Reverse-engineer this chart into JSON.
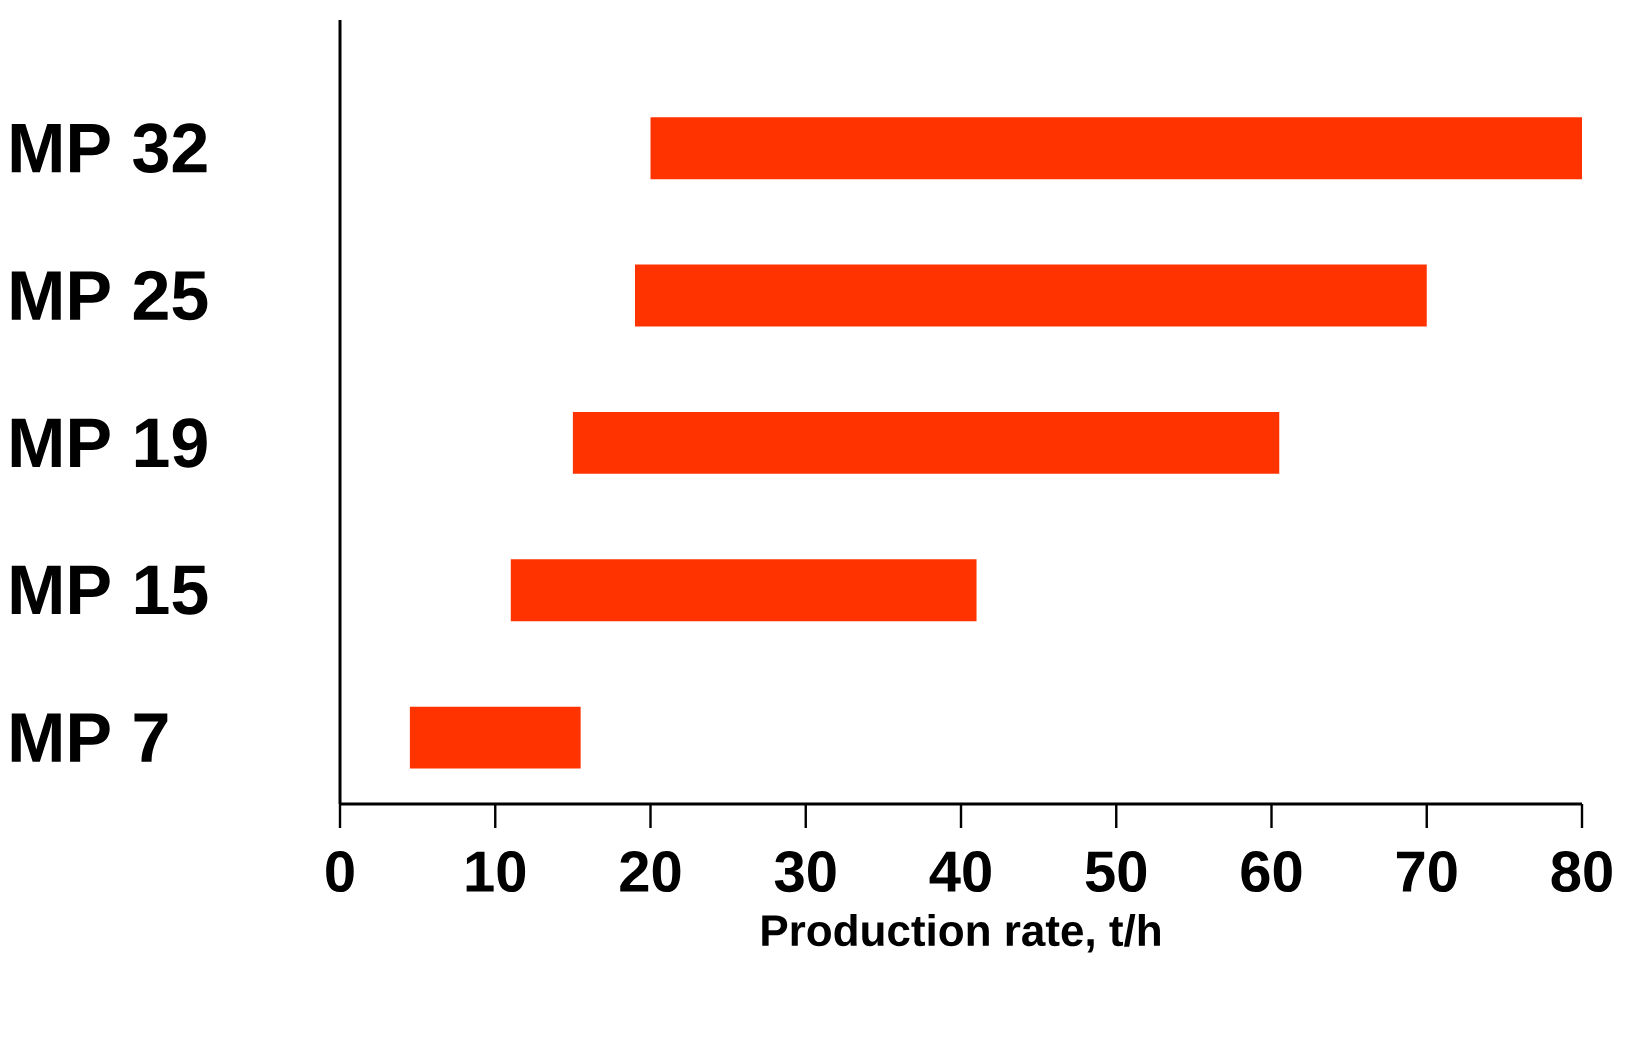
{
  "chart_data": {
    "type": "bar",
    "orientation": "horizontal",
    "categories": [
      "MP 32",
      "MP 25",
      "MP 19",
      "MP 15",
      "MP  7"
    ],
    "base": [
      20,
      19,
      15,
      11,
      4.5
    ],
    "values": [
      60,
      51,
      45.5,
      30,
      11
    ],
    "color": "#ff3300",
    "xlim": [
      0,
      80
    ],
    "xticks": [
      0,
      10,
      20,
      30,
      40,
      50,
      60,
      70,
      80
    ],
    "xlabel": "Production rate, t/h"
  }
}
